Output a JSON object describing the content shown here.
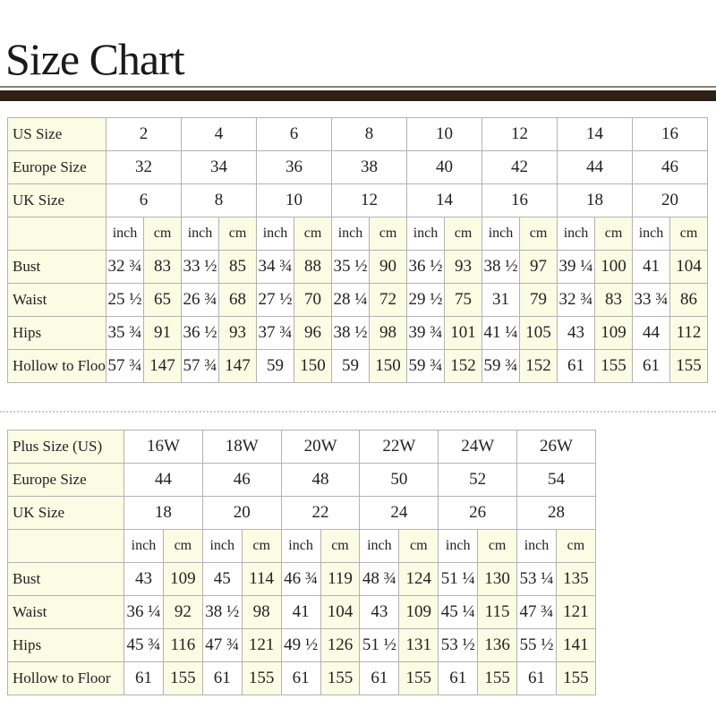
{
  "title": "Size Chart",
  "standard": {
    "headers": [
      {
        "label": "US Size",
        "values": [
          "2",
          "4",
          "6",
          "8",
          "10",
          "12",
          "14",
          "16"
        ]
      },
      {
        "label": "Europe Size",
        "values": [
          "32",
          "34",
          "36",
          "38",
          "40",
          "42",
          "44",
          "46"
        ]
      },
      {
        "label": "UK Size",
        "values": [
          "6",
          "8",
          "10",
          "12",
          "14",
          "16",
          "18",
          "20"
        ]
      }
    ],
    "units": [
      "inch",
      "cm"
    ],
    "rows": [
      {
        "label": "Bust",
        "values": [
          "32 ¾",
          "83",
          "33 ½",
          "85",
          "34 ¾",
          "88",
          "35 ½",
          "90",
          "36 ½",
          "93",
          "38 ½",
          "97",
          "39 ¼",
          "100",
          "41",
          "104"
        ]
      },
      {
        "label": "Waist",
        "values": [
          "25 ½",
          "65",
          "26 ¾",
          "68",
          "27 ½",
          "70",
          "28 ¼",
          "72",
          "29 ½",
          "75",
          "31",
          "79",
          "32 ¾",
          "83",
          "33 ¾",
          "86"
        ]
      },
      {
        "label": "Hips",
        "values": [
          "35 ¾",
          "91",
          "36 ½",
          "93",
          "37 ¾",
          "96",
          "38 ½",
          "98",
          "39 ¾",
          "101",
          "41 ¼",
          "105",
          "43",
          "109",
          "44",
          "112"
        ]
      },
      {
        "label": "Hollow to Floor",
        "values": [
          "57 ¾",
          "147",
          "57 ¾",
          "147",
          "59",
          "150",
          "59",
          "150",
          "59 ¾",
          "152",
          "59 ¾",
          "152",
          "61",
          "155",
          "61",
          "155"
        ]
      }
    ]
  },
  "plus": {
    "headers": [
      {
        "label": "Plus Size (US)",
        "values": [
          "16W",
          "18W",
          "20W",
          "22W",
          "24W",
          "26W"
        ]
      },
      {
        "label": "Europe Size",
        "values": [
          "44",
          "46",
          "48",
          "50",
          "52",
          "54"
        ]
      },
      {
        "label": "UK Size",
        "values": [
          "18",
          "20",
          "22",
          "24",
          "26",
          "28"
        ]
      }
    ],
    "units": [
      "inch",
      "cm"
    ],
    "rows": [
      {
        "label": "Bust",
        "values": [
          "43",
          "109",
          "45",
          "114",
          "46 ¾",
          "119",
          "48 ¾",
          "124",
          "51 ¼",
          "130",
          "53 ¼",
          "135"
        ]
      },
      {
        "label": "Waist",
        "values": [
          "36 ¼",
          "92",
          "38 ½",
          "98",
          "41",
          "104",
          "43",
          "109",
          "45 ¼",
          "115",
          "47 ¾",
          "121"
        ]
      },
      {
        "label": "Hips",
        "values": [
          "45 ¾",
          "116",
          "47 ¾",
          "121",
          "49 ½",
          "126",
          "51 ½",
          "131",
          "53 ½",
          "136",
          "55 ½",
          "141"
        ]
      },
      {
        "label": "Hollow to Floor",
        "values": [
          "61",
          "155",
          "61",
          "155",
          "61",
          "155",
          "61",
          "155",
          "61",
          "155",
          "61",
          "155"
        ]
      }
    ]
  }
}
